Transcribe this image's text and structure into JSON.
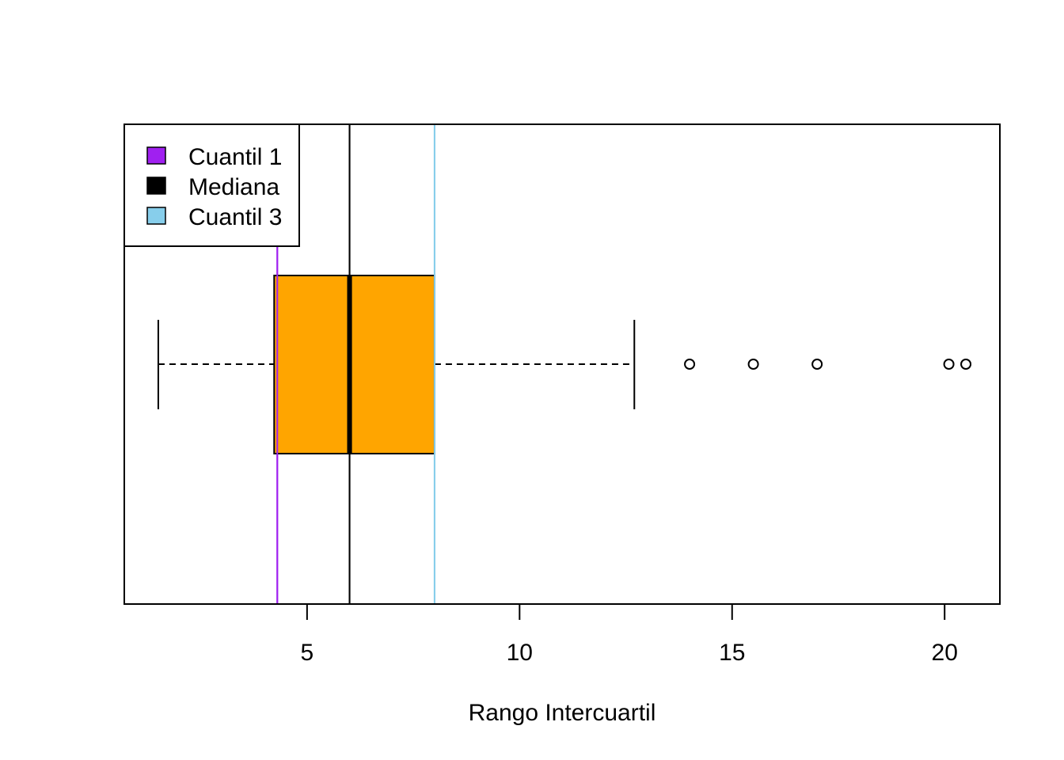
{
  "chart_data": {
    "type": "boxplot",
    "orientation": "horizontal",
    "title": "",
    "xlabel": "Rango Intercuartil",
    "ylabel": "",
    "xlim": [
      0.7,
      21.3
    ],
    "x_ticks": [
      5,
      10,
      15,
      20
    ],
    "x_tick_labels": [
      "5",
      "10",
      "15",
      "20"
    ],
    "box": {
      "min": 1.5,
      "q1": 4.3,
      "median": 6.0,
      "q3": 8.0,
      "max": 12.7,
      "fill": "#FFA500",
      "outliers": [
        14.0,
        15.5,
        17.0,
        20.1,
        20.5
      ]
    },
    "reference_lines": [
      {
        "name": "Cuantil 1",
        "x": 4.3,
        "color": "#A020F0"
      },
      {
        "name": "Mediana",
        "x": 6.0,
        "color": "#000000"
      },
      {
        "name": "Cuantil 3",
        "x": 8.0,
        "color": "#87CEEB"
      }
    ],
    "legend": {
      "position": "top-left",
      "entries": [
        {
          "label": "Cuantil 1",
          "color": "#A020F0"
        },
        {
          "label": "Mediana",
          "color": "#000000"
        },
        {
          "label": "Cuantil 3",
          "color": "#87CEEB"
        }
      ]
    },
    "grid": false
  }
}
